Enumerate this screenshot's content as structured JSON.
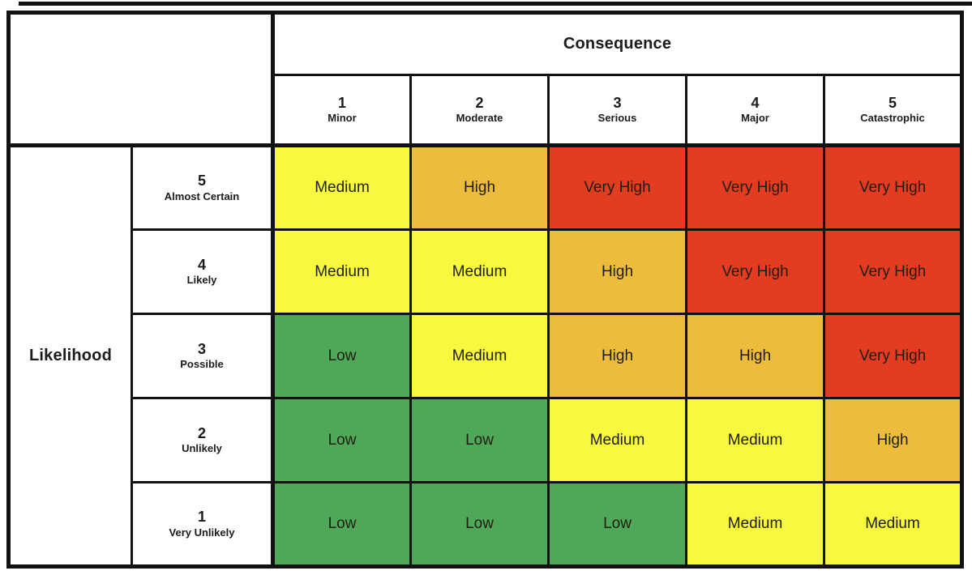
{
  "consequence": {
    "title": "Consequence",
    "levels": [
      {
        "number": "1",
        "label": "Minor"
      },
      {
        "number": "2",
        "label": "Moderate"
      },
      {
        "number": "3",
        "label": "Serious"
      },
      {
        "number": "4",
        "label": "Major"
      },
      {
        "number": "5",
        "label": "Catastrophic"
      }
    ]
  },
  "likelihood": {
    "title": "Likelihood"
  },
  "matrix": {
    "rows": [
      {
        "number": "5",
        "label": "Almost Certain",
        "cells": [
          {
            "text": "Medium",
            "level": "medium"
          },
          {
            "text": "High",
            "level": "high"
          },
          {
            "text": "Very High",
            "level": "very_high"
          },
          {
            "text": "Very High",
            "level": "very_high"
          },
          {
            "text": "Very High",
            "level": "very_high"
          }
        ]
      },
      {
        "number": "4",
        "label": "Likely",
        "cells": [
          {
            "text": "Medium",
            "level": "medium"
          },
          {
            "text": "Medium",
            "level": "medium"
          },
          {
            "text": "High",
            "level": "high"
          },
          {
            "text": "Very High",
            "level": "very_high"
          },
          {
            "text": "Very High",
            "level": "very_high"
          }
        ]
      },
      {
        "number": "3",
        "label": "Possible",
        "cells": [
          {
            "text": "Low",
            "level": "low"
          },
          {
            "text": "Medium",
            "level": "medium"
          },
          {
            "text": "High",
            "level": "high"
          },
          {
            "text": "High",
            "level": "high"
          },
          {
            "text": "Very High",
            "level": "very_high"
          }
        ]
      },
      {
        "number": "2",
        "label": "Unlikely",
        "cells": [
          {
            "text": "Low",
            "level": "low"
          },
          {
            "text": "Low",
            "level": "low"
          },
          {
            "text": "Medium",
            "level": "medium"
          },
          {
            "text": "Medium",
            "level": "medium"
          },
          {
            "text": "High",
            "level": "high"
          }
        ]
      },
      {
        "number": "1",
        "label": "Very Unlikely",
        "cells": [
          {
            "text": "Low",
            "level": "low"
          },
          {
            "text": "Low",
            "level": "low"
          },
          {
            "text": "Low",
            "level": "low"
          },
          {
            "text": "Medium",
            "level": "medium"
          },
          {
            "text": "Medium",
            "level": "medium"
          }
        ]
      }
    ]
  },
  "colors": {
    "low": "#4FA857",
    "medium": "#F8F83F",
    "high": "#EEBC3C",
    "very_high": "#E43C20"
  }
}
